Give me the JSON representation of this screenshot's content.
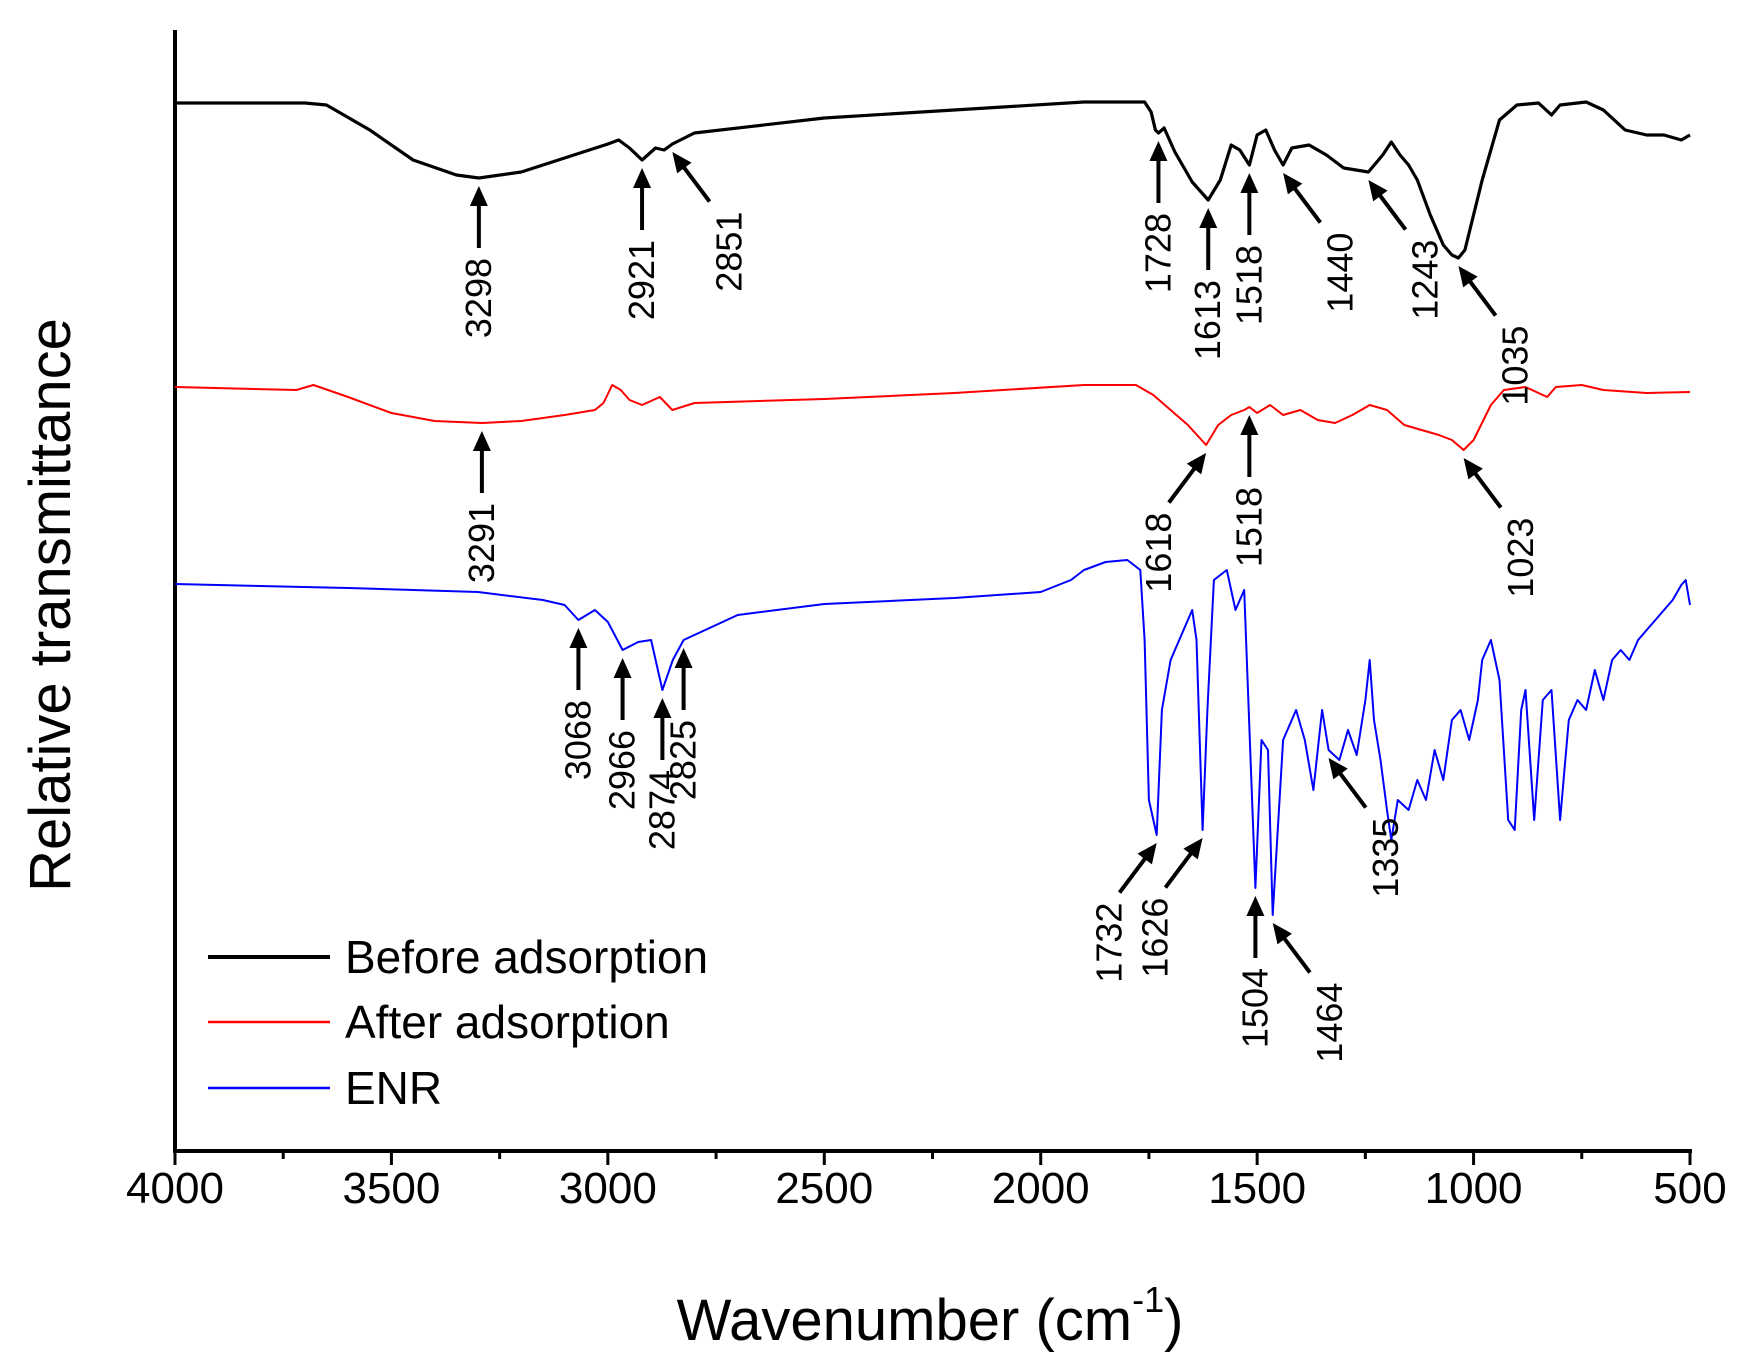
{
  "chart_data": {
    "type": "line",
    "xlabel": "Wavenumber (cm",
    "xlabel_superscript": "-1",
    "xlabel_suffix": ")",
    "ylabel": "Relative transmittance",
    "xlim": [
      4000,
      500
    ],
    "x_ticks": [
      4000,
      3500,
      3000,
      2500,
      2000,
      1500,
      1000,
      500
    ],
    "x_tick_labels": [
      "4000",
      "3500",
      "3000",
      "2500",
      "2000",
      "1500",
      "1000",
      "500"
    ],
    "y_ticks": [],
    "legend_position": "bottom-left",
    "series": [
      {
        "name": "Before adsorption",
        "color": "#000000",
        "points": [
          [
            4000,
            3
          ],
          [
            3700,
            3
          ],
          [
            3650,
            5
          ],
          [
            3550,
            30
          ],
          [
            3450,
            60
          ],
          [
            3350,
            75
          ],
          [
            3298,
            78
          ],
          [
            3200,
            72
          ],
          [
            3100,
            58
          ],
          [
            3000,
            44
          ],
          [
            2975,
            40
          ],
          [
            2950,
            48
          ],
          [
            2921,
            60
          ],
          [
            2890,
            48
          ],
          [
            2870,
            50
          ],
          [
            2851,
            44
          ],
          [
            2800,
            33
          ],
          [
            2500,
            18
          ],
          [
            2200,
            10
          ],
          [
            1900,
            2
          ],
          [
            1760,
            2
          ],
          [
            1745,
            12
          ],
          [
            1735,
            30
          ],
          [
            1728,
            33
          ],
          [
            1715,
            28
          ],
          [
            1690,
            52
          ],
          [
            1650,
            82
          ],
          [
            1613,
            100
          ],
          [
            1585,
            80
          ],
          [
            1560,
            45
          ],
          [
            1540,
            50
          ],
          [
            1518,
            65
          ],
          [
            1500,
            35
          ],
          [
            1480,
            30
          ],
          [
            1460,
            50
          ],
          [
            1440,
            65
          ],
          [
            1420,
            48
          ],
          [
            1380,
            45
          ],
          [
            1340,
            55
          ],
          [
            1300,
            68
          ],
          [
            1243,
            72
          ],
          [
            1210,
            55
          ],
          [
            1190,
            42
          ],
          [
            1170,
            55
          ],
          [
            1150,
            65
          ],
          [
            1130,
            80
          ],
          [
            1100,
            115
          ],
          [
            1070,
            145
          ],
          [
            1050,
            155
          ],
          [
            1035,
            158
          ],
          [
            1020,
            150
          ],
          [
            980,
            80
          ],
          [
            940,
            20
          ],
          [
            900,
            5
          ],
          [
            850,
            3
          ],
          [
            820,
            15
          ],
          [
            800,
            5
          ],
          [
            740,
            2
          ],
          [
            700,
            10
          ],
          [
            650,
            30
          ],
          [
            600,
            35
          ],
          [
            560,
            35
          ],
          [
            520,
            40
          ],
          [
            500,
            35
          ]
        ]
      },
      {
        "name": "After adsorption",
        "color": "#ff0000",
        "points": [
          [
            4000,
            2
          ],
          [
            3720,
            5
          ],
          [
            3680,
            0
          ],
          [
            3600,
            12
          ],
          [
            3500,
            28
          ],
          [
            3400,
            36
          ],
          [
            3291,
            38
          ],
          [
            3200,
            36
          ],
          [
            3100,
            30
          ],
          [
            3030,
            25
          ],
          [
            3010,
            18
          ],
          [
            2990,
            0
          ],
          [
            2970,
            5
          ],
          [
            2950,
            15
          ],
          [
            2921,
            20
          ],
          [
            2880,
            12
          ],
          [
            2851,
            25
          ],
          [
            2800,
            18
          ],
          [
            2500,
            14
          ],
          [
            2200,
            8
          ],
          [
            1900,
            0
          ],
          [
            1780,
            0
          ],
          [
            1740,
            10
          ],
          [
            1700,
            25
          ],
          [
            1660,
            40
          ],
          [
            1618,
            60
          ],
          [
            1590,
            40
          ],
          [
            1560,
            30
          ],
          [
            1530,
            25
          ],
          [
            1518,
            22
          ],
          [
            1500,
            28
          ],
          [
            1470,
            20
          ],
          [
            1440,
            30
          ],
          [
            1400,
            25
          ],
          [
            1360,
            35
          ],
          [
            1320,
            38
          ],
          [
            1280,
            30
          ],
          [
            1240,
            20
          ],
          [
            1200,
            25
          ],
          [
            1160,
            40
          ],
          [
            1120,
            45
          ],
          [
            1080,
            50
          ],
          [
            1050,
            55
          ],
          [
            1023,
            65
          ],
          [
            1000,
            55
          ],
          [
            960,
            20
          ],
          [
            930,
            5
          ],
          [
            880,
            2
          ],
          [
            850,
            8
          ],
          [
            830,
            12
          ],
          [
            810,
            2
          ],
          [
            750,
            0
          ],
          [
            700,
            5
          ],
          [
            600,
            8
          ],
          [
            500,
            7
          ]
        ]
      },
      {
        "name": "ENR",
        "color": "#0000ff",
        "points": [
          [
            4000,
            -176
          ],
          [
            3600,
            -172
          ],
          [
            3300,
            -168
          ],
          [
            3150,
            -160
          ],
          [
            3100,
            -155
          ],
          [
            3068,
            -140
          ],
          [
            3030,
            -150
          ],
          [
            3000,
            -138
          ],
          [
            2966,
            -110
          ],
          [
            2930,
            -118
          ],
          [
            2900,
            -120
          ],
          [
            2874,
            -70
          ],
          [
            2850,
            -100
          ],
          [
            2825,
            -120
          ],
          [
            2700,
            -145
          ],
          [
            2500,
            -156
          ],
          [
            2200,
            -162
          ],
          [
            2000,
            -168
          ],
          [
            1930,
            -180
          ],
          [
            1900,
            -190
          ],
          [
            1850,
            -198
          ],
          [
            1800,
            -200
          ],
          [
            1770,
            -190
          ],
          [
            1760,
            -120
          ],
          [
            1750,
            40
          ],
          [
            1732,
            75
          ],
          [
            1720,
            -50
          ],
          [
            1700,
            -100
          ],
          [
            1650,
            -150
          ],
          [
            1640,
            -120
          ],
          [
            1626,
            70
          ],
          [
            1615,
            -50
          ],
          [
            1600,
            -180
          ],
          [
            1570,
            -190
          ],
          [
            1550,
            -150
          ],
          [
            1530,
            -170
          ],
          [
            1504,
            128
          ],
          [
            1490,
            -20
          ],
          [
            1475,
            -10
          ],
          [
            1464,
            155
          ],
          [
            1440,
            -20
          ],
          [
            1410,
            -50
          ],
          [
            1390,
            -20
          ],
          [
            1370,
            30
          ],
          [
            1350,
            -50
          ],
          [
            1335,
            -10
          ],
          [
            1310,
            0
          ],
          [
            1290,
            -30
          ],
          [
            1270,
            -5
          ],
          [
            1250,
            -60
          ],
          [
            1240,
            -100
          ],
          [
            1230,
            -40
          ],
          [
            1215,
            0
          ],
          [
            1200,
            50
          ],
          [
            1190,
            80
          ],
          [
            1175,
            40
          ],
          [
            1150,
            50
          ],
          [
            1130,
            20
          ],
          [
            1110,
            40
          ],
          [
            1090,
            -10
          ],
          [
            1070,
            20
          ],
          [
            1050,
            -40
          ],
          [
            1030,
            -50
          ],
          [
            1010,
            -20
          ],
          [
            990,
            -60
          ],
          [
            980,
            -100
          ],
          [
            960,
            -120
          ],
          [
            940,
            -80
          ],
          [
            920,
            60
          ],
          [
            905,
            70
          ],
          [
            890,
            -50
          ],
          [
            880,
            -70
          ],
          [
            860,
            60
          ],
          [
            840,
            -60
          ],
          [
            820,
            -70
          ],
          [
            800,
            60
          ],
          [
            780,
            -40
          ],
          [
            760,
            -60
          ],
          [
            740,
            -50
          ],
          [
            720,
            -90
          ],
          [
            700,
            -60
          ],
          [
            680,
            -100
          ],
          [
            660,
            -110
          ],
          [
            640,
            -100
          ],
          [
            620,
            -120
          ],
          [
            600,
            -130
          ],
          [
            580,
            -140
          ],
          [
            560,
            -150
          ],
          [
            540,
            -160
          ],
          [
            520,
            -175
          ],
          [
            510,
            -180
          ],
          [
            500,
            -155
          ]
        ]
      }
    ],
    "annotations": [
      {
        "label": "3298",
        "series": "Before adsorption",
        "x": 3298,
        "arrow": "up"
      },
      {
        "label": "2921",
        "series": "Before adsorption",
        "x": 2921,
        "arrow": "up"
      },
      {
        "label": "2851",
        "series": "Before adsorption",
        "x": 2851,
        "arrow": "up-left"
      },
      {
        "label": "1728",
        "series": "Before adsorption",
        "x": 1728,
        "arrow": "up"
      },
      {
        "label": "1613",
        "series": "Before adsorption",
        "x": 1613,
        "arrow": "up"
      },
      {
        "label": "1518",
        "series": "Before adsorption",
        "x": 1518,
        "arrow": "up"
      },
      {
        "label": "1440",
        "series": "Before adsorption",
        "x": 1440,
        "arrow": "up-left"
      },
      {
        "label": "1243",
        "series": "Before adsorption",
        "x": 1243,
        "arrow": "up-left"
      },
      {
        "label": "1035",
        "series": "Before adsorption",
        "x": 1035,
        "arrow": "up-left"
      },
      {
        "label": "3291",
        "series": "After adsorption",
        "x": 3291,
        "arrow": "up"
      },
      {
        "label": "1618",
        "series": "After adsorption",
        "x": 1618,
        "arrow": "up-right"
      },
      {
        "label": "1518",
        "series": "After adsorption",
        "x": 1518,
        "arrow": "up"
      },
      {
        "label": "1023",
        "series": "After adsorption",
        "x": 1023,
        "arrow": "up-left"
      },
      {
        "label": "3068",
        "series": "ENR",
        "x": 3068,
        "arrow": "up"
      },
      {
        "label": "2966",
        "series": "ENR",
        "x": 2966,
        "arrow": "up"
      },
      {
        "label": "2874",
        "series": "ENR",
        "x": 2874,
        "arrow": "up"
      },
      {
        "label": "2825",
        "series": "ENR",
        "x": 2825,
        "arrow": "up"
      },
      {
        "label": "1732",
        "series": "ENR",
        "x": 1732,
        "arrow": "up-right"
      },
      {
        "label": "1626",
        "series": "ENR",
        "x": 1626,
        "arrow": "up-right"
      },
      {
        "label": "1504",
        "series": "ENR",
        "x": 1504,
        "arrow": "up"
      },
      {
        "label": "1464",
        "series": "ENR",
        "x": 1464,
        "arrow": "up-left"
      },
      {
        "label": "1335",
        "series": "ENR",
        "x": 1335,
        "arrow": "up-left"
      }
    ]
  }
}
